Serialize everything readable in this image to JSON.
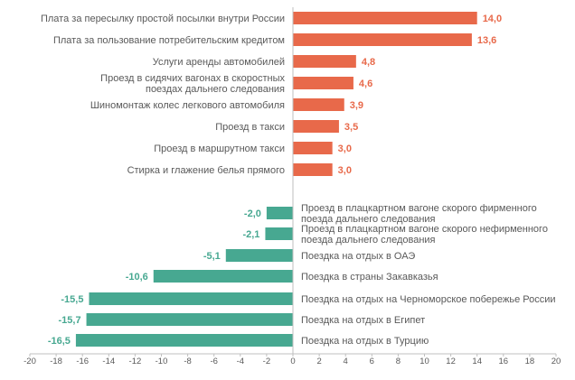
{
  "chart_data": {
    "type": "bar",
    "orientation": "horizontal",
    "title": "",
    "xlabel": "",
    "ylabel": "",
    "xlim": [
      -20,
      20
    ],
    "x_ticks": [
      "-20",
      "-18",
      "-16",
      "-14",
      "-12",
      "-10",
      "-8",
      "-6",
      "-4",
      "-2",
      "0",
      "2",
      "4",
      "6",
      "8",
      "10",
      "12",
      "14",
      "16",
      "18",
      "20"
    ],
    "colors": {
      "positive": "#e8694a",
      "negative": "#47a891",
      "axis": "#bfbfbf"
    },
    "bars": [
      {
        "label": [
          "Плата за пересылку простой посылки внутри России"
        ],
        "value": 14.0,
        "value_label": "14,0"
      },
      {
        "label": [
          "Плата за пользование потребительским кредитом"
        ],
        "value": 13.6,
        "value_label": "13,6"
      },
      {
        "label": [
          "Услуги аренды автомобилей"
        ],
        "value": 4.8,
        "value_label": "4,8"
      },
      {
        "label": [
          "Проезд в сидячих вагонах в скоростных",
          "поездах дальнего следования"
        ],
        "value": 4.6,
        "value_label": "4,6"
      },
      {
        "label": [
          "Шиномонтаж колес легкового автомобиля"
        ],
        "value": 3.9,
        "value_label": "3,9"
      },
      {
        "label": [
          "Проезд в такси"
        ],
        "value": 3.5,
        "value_label": "3,5"
      },
      {
        "label": [
          "Проезд в маршрутном такси"
        ],
        "value": 3.0,
        "value_label": "3,0"
      },
      {
        "label": [
          "Стирка и глажение белья прямого"
        ],
        "value": 3.0,
        "value_label": "3,0"
      },
      {
        "label": [
          "Проезд в плацкартном вагоне скорого фирменного",
          "поезда дальнего следования"
        ],
        "value": -2.0,
        "value_label": "-2,0"
      },
      {
        "label": [
          "Проезд в плацкартном вагоне скорого нефирменного",
          "поезда дальнего следования"
        ],
        "value": -2.1,
        "value_label": "-2,1"
      },
      {
        "label": [
          "Поездка на отдых в ОАЭ"
        ],
        "value": -5.1,
        "value_label": "-5,1"
      },
      {
        "label": [
          "Поездка в страны Закавказья"
        ],
        "value": -10.6,
        "value_label": "-10,6"
      },
      {
        "label": [
          "Поездка на отдых на Черноморское побережье России"
        ],
        "value": -15.5,
        "value_label": "-15,5"
      },
      {
        "label": [
          "Поездка на отдых в Египет"
        ],
        "value": -15.7,
        "value_label": "-15,7"
      },
      {
        "label": [
          "Поездка на отдых в Турцию"
        ],
        "value": -16.5,
        "value_label": "-16,5"
      }
    ]
  }
}
